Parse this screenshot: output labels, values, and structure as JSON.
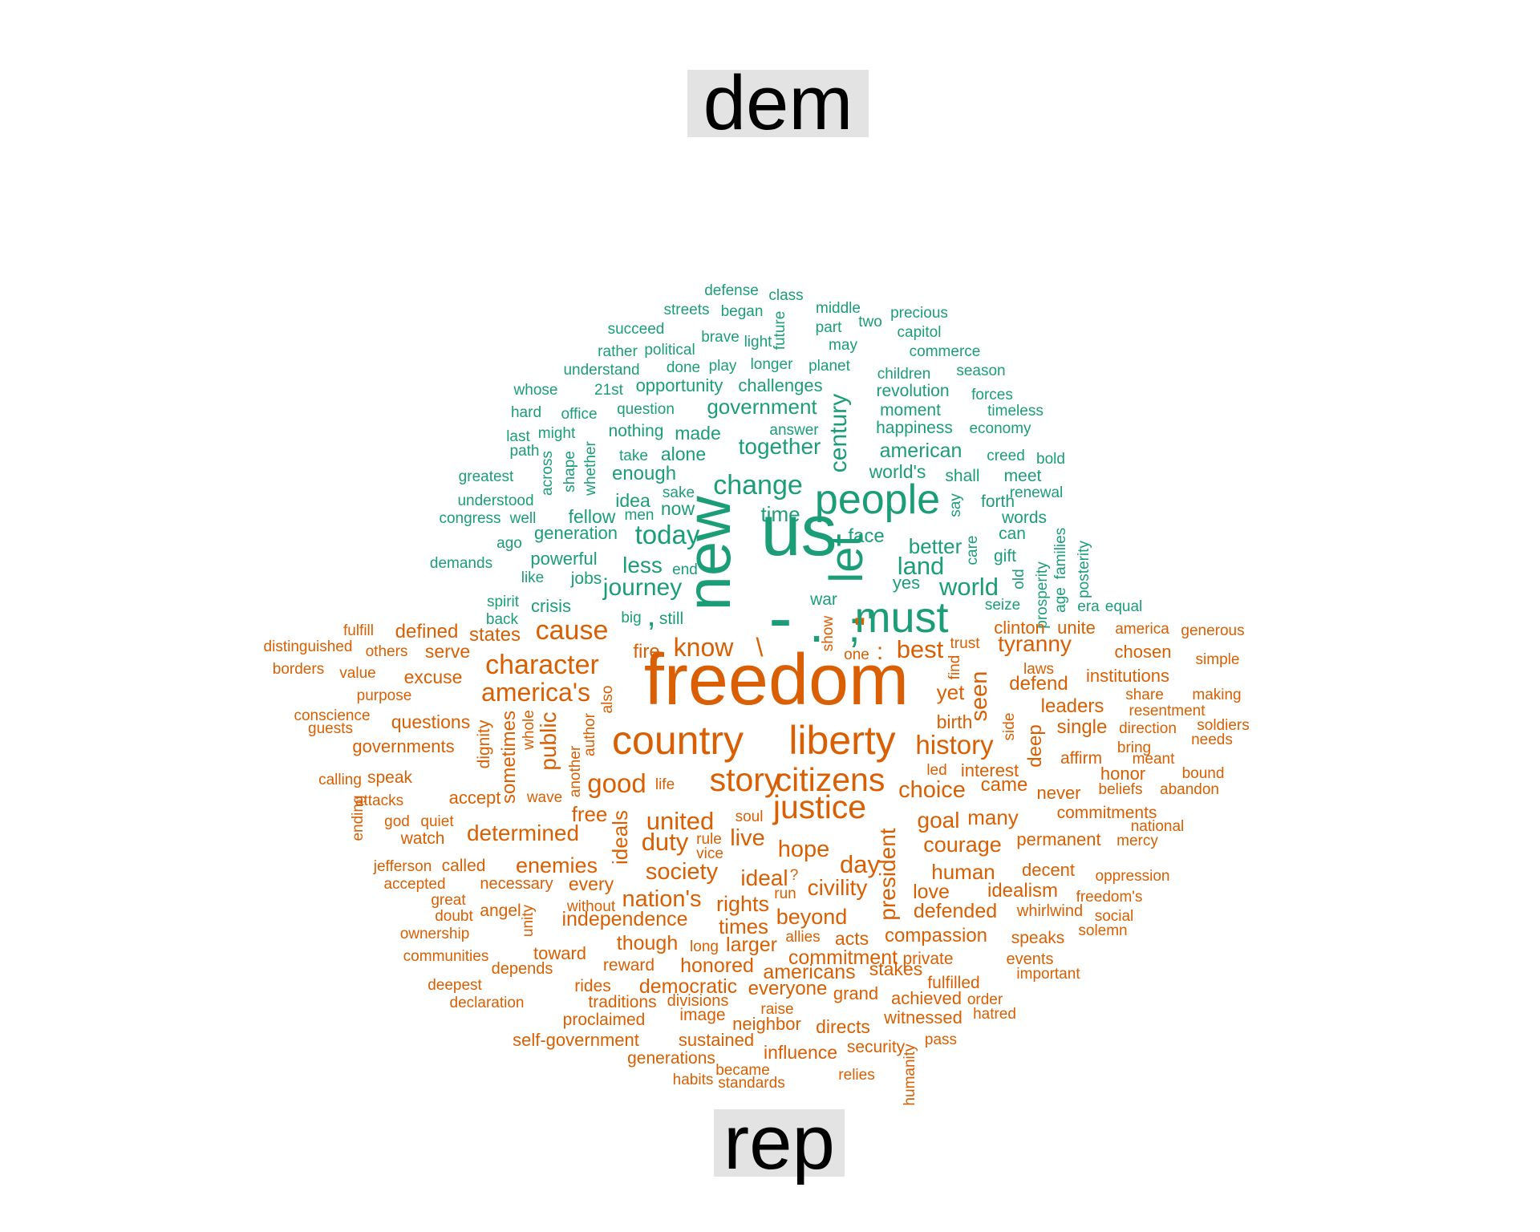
{
  "labels": {
    "top": "dem",
    "bottom": "rep"
  },
  "colors": {
    "dem": "#1b9e77",
    "rep": "#d95f02",
    "label_bg": "#e3e3e3"
  },
  "words": {
    "dem": [
      "defense",
      "class",
      "streets",
      "began",
      "middle",
      "precious",
      "succeed",
      "future",
      "part",
      "two",
      "capitol",
      "brave",
      "light",
      "may",
      "rather",
      "political",
      "commerce",
      "understand",
      "done",
      "play",
      "longer",
      "planet",
      "children",
      "season",
      "whose",
      "21st",
      "opportunity",
      "challenges",
      "revolution",
      "forces",
      "hard",
      "office",
      "question",
      "government",
      "century",
      "moment",
      "timeless",
      "last",
      "might",
      "nothing",
      "made",
      "answer",
      "happiness",
      "economy",
      "path",
      "together",
      "american",
      "creed",
      "greatest",
      "across",
      "shape",
      "whether",
      "take",
      "alone",
      "enough",
      "world's",
      "shall",
      "meet",
      "bold",
      "understood",
      "sake",
      "change",
      "renewal",
      "congress",
      "well",
      "idea",
      "people",
      "say",
      "forth",
      "men",
      "now",
      "fellow",
      "time",
      "words",
      "generation",
      "today",
      "new",
      "us",
      "face",
      "better",
      "care",
      "can",
      "ago",
      "let",
      "gift",
      "families",
      "demands",
      "powerful",
      "less",
      "end",
      "land",
      "old",
      "posterity",
      "like",
      "jobs",
      "journey",
      "yes",
      "world",
      "prosperity",
      "age",
      "spirit",
      "crisis",
      "war",
      "seize",
      "era",
      "equal",
      "back",
      "big",
      "still",
      "must",
      "-",
      ".",
      ";",
      ",",
      "'"
    ],
    "rep": [
      "fulfill",
      "defined",
      "states",
      "cause",
      "clinton",
      "unite",
      "america",
      "generous",
      "distinguished",
      "others",
      "serve",
      "fire",
      "know",
      "\\",
      "show",
      "\"",
      "one",
      ":",
      "best",
      "trust",
      "tyranny",
      "chosen",
      "simple",
      "borders",
      "value",
      "character",
      "find",
      "laws",
      "institutions",
      "excuse",
      "freedom",
      "defend",
      "share",
      "making",
      "purpose",
      "america's",
      "also",
      "yet",
      "seen",
      "leaders",
      "resentment",
      "conscience",
      "questions",
      "dignity",
      "whole",
      "author",
      "public",
      "birth",
      "side",
      "single",
      "soldiers",
      "guests",
      "sometimes",
      "direction",
      "needs",
      "governments",
      "country",
      "liberty",
      "history",
      "deep",
      "affirm",
      "bring",
      "another",
      "meant",
      "calling",
      "speak",
      "led",
      "interest",
      "honor",
      "bound",
      "story",
      "citizens",
      "life",
      "good",
      "choice",
      "came",
      "never",
      "beliefs",
      "abandon",
      "attacks",
      "accept",
      "wave",
      "ending",
      "quiet",
      "free",
      "ideals",
      "justice",
      "soul",
      "goal",
      "many",
      "commitments",
      "god",
      "united",
      "national",
      "watch",
      "determined",
      "live",
      "rule",
      "president",
      "courage",
      "permanent",
      "mercy",
      "duty",
      "hope",
      "vice",
      "day",
      "jefferson",
      "called",
      "enemies",
      "society",
      "ideal",
      "decent",
      "oppression",
      "accepted",
      "necessary",
      "every",
      "civility",
      "human",
      "great",
      "run",
      "love",
      "idealism",
      "freedom's",
      "doubt",
      "angel",
      "without",
      "nation's",
      "rights",
      "defended",
      "whirlwind",
      "social",
      "unity",
      "independence",
      "beyond",
      "times",
      "ownership",
      "allies",
      "acts",
      "compassion",
      "speaks",
      "solemn",
      "though",
      "larger",
      "long",
      "communities",
      "toward",
      "commitment",
      "private",
      "events",
      "depends",
      "reward",
      "honored",
      "americans",
      "stakes",
      "important",
      "deepest",
      "rides",
      "democratic",
      "everyone",
      "grand",
      "fulfilled",
      "achieved",
      "order",
      "declaration",
      "traditions",
      "divisions",
      "image",
      "raise",
      "witnessed",
      "hatred",
      "proclaimed",
      "neighbor",
      "directs",
      "self-government",
      "sustained",
      "pass",
      "influence",
      "security",
      "humanity",
      "generations",
      "became",
      "relies",
      "habits",
      "standards",
      "?"
    ]
  }
}
